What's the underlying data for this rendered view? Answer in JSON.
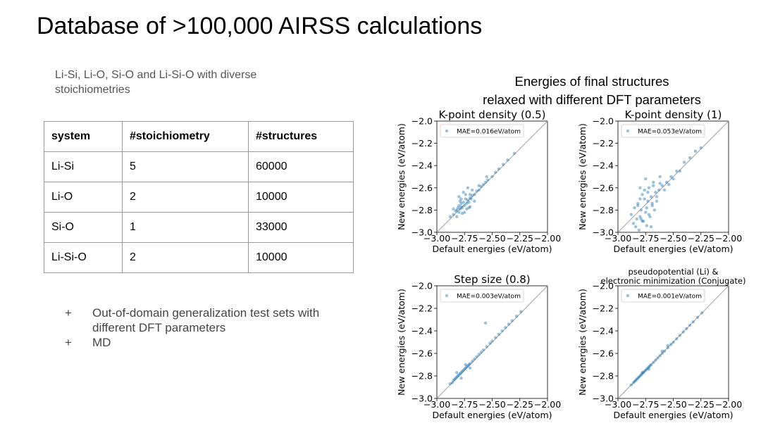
{
  "slide": {
    "title": "Database of >100,000 AIRSS calculations",
    "subtitle": "Li-Si, Li-O, Si-O and Li-Si-O with diverse stoichiometries",
    "plots_heading_line1": "Energies of final structures",
    "plots_heading_line2": "relaxed with different DFT parameters"
  },
  "table": {
    "headers": [
      "system",
      "#stoichiometry",
      "#structures"
    ],
    "rows": [
      [
        "Li-Si",
        "5",
        "60000"
      ],
      [
        "Li-O",
        "2",
        "10000"
      ],
      [
        "Si-O",
        "1",
        "33000"
      ],
      [
        "Li-Si-O",
        "2",
        "10000"
      ]
    ]
  },
  "bullets": [
    {
      "mark": "+",
      "text": "Out-of-domain generalization test sets with different DFT parameters"
    },
    {
      "mark": "+",
      "text": "MD"
    }
  ],
  "colors": {
    "points": "#1f77b4",
    "diagonal": "#a0a0a0"
  },
  "chart_data": [
    {
      "type": "scatter",
      "title": "K-point density (0.5)",
      "xlabel": "Default energies (eV/atom)",
      "ylabel": "New energies (eV/atom)",
      "xlim": [
        -3.0,
        -2.0
      ],
      "ylim": [
        -3.0,
        -2.0
      ],
      "xticks": [
        "−3.00",
        "−2.75",
        "−2.50",
        "−2.25",
        "−2.00"
      ],
      "yticks": [
        "−3.0",
        "−2.8",
        "−2.6",
        "−2.4",
        "−2.2",
        "−2.0"
      ],
      "legend": "MAE=0.016eV/atom",
      "legend_position": "top-left",
      "series": [
        {
          "x": [
            -2.88,
            -2.85,
            -2.83,
            -2.82,
            -2.81,
            -2.8,
            -2.8,
            -2.79,
            -2.78,
            -2.78,
            -2.77,
            -2.76,
            -2.75,
            -2.74,
            -2.73,
            -2.72,
            -2.71,
            -2.7,
            -2.69,
            -2.68,
            -2.66,
            -2.64,
            -2.62,
            -2.6,
            -2.58,
            -2.56,
            -2.54,
            -2.5,
            -2.47,
            -2.44,
            -2.4,
            -2.36,
            -2.3,
            -2.85,
            -2.82,
            -2.79,
            -2.77,
            -2.74,
            -2.71,
            -2.68,
            -2.66,
            -2.8,
            -2.76,
            -2.72,
            -2.7,
            -2.75,
            -2.78,
            -2.73,
            -2.7,
            -2.62,
            -2.55
          ],
          "y": [
            -2.86,
            -2.84,
            -2.81,
            -2.8,
            -2.78,
            -2.82,
            -2.76,
            -2.79,
            -2.77,
            -2.74,
            -2.78,
            -2.73,
            -2.76,
            -2.7,
            -2.74,
            -2.71,
            -2.73,
            -2.69,
            -2.7,
            -2.67,
            -2.66,
            -2.63,
            -2.62,
            -2.59,
            -2.57,
            -2.55,
            -2.53,
            -2.5,
            -2.46,
            -2.43,
            -2.39,
            -2.35,
            -2.29,
            -2.79,
            -2.86,
            -2.72,
            -2.83,
            -2.66,
            -2.78,
            -2.62,
            -2.72,
            -2.68,
            -2.64,
            -2.6,
            -2.77,
            -2.82,
            -2.7,
            -2.79,
            -2.66,
            -2.58,
            -2.5
          ]
        }
      ]
    },
    {
      "type": "scatter",
      "title": "K-point density (1)",
      "xlabel": "Default energies (eV/atom)",
      "ylabel": "New energies (eV/atom)",
      "xlim": [
        -3.0,
        -2.0
      ],
      "ylim": [
        -3.0,
        -2.0
      ],
      "xticks": [
        "−3.00",
        "−2.75",
        "−2.50",
        "−2.25",
        "−2.00"
      ],
      "yticks": [
        "−3.0",
        "−2.8",
        "−2.6",
        "−2.4",
        "−2.2",
        "−2.0"
      ],
      "legend": "MAE=0.053eV/atom",
      "legend_position": "top-left",
      "series": [
        {
          "x": [
            -2.88,
            -2.86,
            -2.85,
            -2.84,
            -2.83,
            -2.82,
            -2.81,
            -2.8,
            -2.8,
            -2.79,
            -2.78,
            -2.77,
            -2.76,
            -2.75,
            -2.74,
            -2.73,
            -2.72,
            -2.71,
            -2.7,
            -2.69,
            -2.68,
            -2.67,
            -2.66,
            -2.65,
            -2.63,
            -2.62,
            -2.6,
            -2.58,
            -2.56,
            -2.54,
            -2.52,
            -2.5,
            -2.47,
            -2.44,
            -2.4,
            -2.35,
            -2.3,
            -2.25,
            -2.8,
            -2.78,
            -2.75,
            -2.72,
            -2.7,
            -2.68,
            -2.76,
            -2.74,
            -2.65,
            -2.62,
            -2.82,
            -2.79,
            -2.73,
            -2.69
          ],
          "y": [
            -2.84,
            -2.92,
            -2.78,
            -2.95,
            -2.88,
            -2.74,
            -2.98,
            -2.7,
            -2.86,
            -2.8,
            -2.66,
            -2.9,
            -2.62,
            -2.82,
            -2.94,
            -2.72,
            -2.6,
            -2.86,
            -2.68,
            -2.76,
            -2.55,
            -2.8,
            -2.64,
            -2.72,
            -2.62,
            -2.5,
            -2.58,
            -2.62,
            -2.55,
            -2.57,
            -2.5,
            -2.52,
            -2.45,
            -2.45,
            -2.37,
            -2.33,
            -2.27,
            -2.24,
            -2.6,
            -2.9,
            -2.52,
            -2.84,
            -2.95,
            -2.58,
            -2.7,
            -2.78,
            -2.68,
            -2.56,
            -2.76,
            -2.88,
            -2.64,
            -2.74
          ]
        }
      ]
    },
    {
      "type": "scatter",
      "title": "Step size (0.8)",
      "xlabel": "Default energies (eV/atom)",
      "ylabel": "New energies (eV/atom)",
      "xlim": [
        -3.0,
        -2.0
      ],
      "ylim": [
        -3.0,
        -2.0
      ],
      "xticks": [
        "−3.00",
        "−2.75",
        "−2.50",
        "−2.25",
        "−2.00"
      ],
      "yticks": [
        "−3.0",
        "−2.8",
        "−2.6",
        "−2.4",
        "−2.2",
        "−2.0"
      ],
      "legend": "MAE=0.003eV/atom",
      "legend_position": "top-left",
      "series": [
        {
          "x": [
            -2.88,
            -2.86,
            -2.85,
            -2.84,
            -2.83,
            -2.82,
            -2.81,
            -2.8,
            -2.79,
            -2.78,
            -2.77,
            -2.76,
            -2.75,
            -2.74,
            -2.73,
            -2.72,
            -2.71,
            -2.7,
            -2.68,
            -2.66,
            -2.64,
            -2.62,
            -2.6,
            -2.58,
            -2.55,
            -2.52,
            -2.5,
            -2.47,
            -2.44,
            -2.41,
            -2.38,
            -2.35,
            -2.32,
            -2.28,
            -2.24,
            -2.82,
            -2.78,
            -2.74,
            -2.7,
            -2.56
          ],
          "y": [
            -2.87,
            -2.86,
            -2.84,
            -2.83,
            -2.82,
            -2.81,
            -2.8,
            -2.79,
            -2.78,
            -2.77,
            -2.76,
            -2.75,
            -2.74,
            -2.73,
            -2.72,
            -2.71,
            -2.7,
            -2.69,
            -2.67,
            -2.65,
            -2.63,
            -2.61,
            -2.59,
            -2.57,
            -2.54,
            -2.51,
            -2.49,
            -2.46,
            -2.43,
            -2.4,
            -2.37,
            -2.34,
            -2.31,
            -2.27,
            -2.23,
            -2.77,
            -2.82,
            -2.7,
            -2.73,
            -2.33
          ]
        }
      ]
    },
    {
      "type": "scatter",
      "title": "pseudopotential (Li) & electronic minimization (Conjugate)",
      "xlabel": "Default energies (eV/atom)",
      "ylabel": "New energies (eV/atom)",
      "xlim": [
        -3.0,
        -2.0
      ],
      "ylim": [
        -3.0,
        -2.0
      ],
      "xticks": [
        "−3.00",
        "−2.75",
        "−2.50",
        "−2.25",
        "−2.00"
      ],
      "yticks": [
        "−3.0",
        "−2.8",
        "−2.6",
        "−2.4",
        "−2.2",
        "−2.0"
      ],
      "legend": "MAE=0.001eV/atom",
      "legend_position": "top-left",
      "series": [
        {
          "x": [
            -2.88,
            -2.86,
            -2.85,
            -2.84,
            -2.83,
            -2.82,
            -2.81,
            -2.8,
            -2.79,
            -2.78,
            -2.77,
            -2.76,
            -2.75,
            -2.74,
            -2.73,
            -2.72,
            -2.71,
            -2.7,
            -2.68,
            -2.66,
            -2.64,
            -2.62,
            -2.6,
            -2.58,
            -2.55,
            -2.52,
            -2.5,
            -2.47,
            -2.44,
            -2.41,
            -2.38,
            -2.35,
            -2.32,
            -2.28,
            -2.24,
            -2.78,
            -2.72,
            -2.6,
            -2.55
          ],
          "y": [
            -2.88,
            -2.86,
            -2.85,
            -2.84,
            -2.83,
            -2.82,
            -2.81,
            -2.8,
            -2.79,
            -2.78,
            -2.77,
            -2.76,
            -2.75,
            -2.74,
            -2.73,
            -2.72,
            -2.71,
            -2.7,
            -2.68,
            -2.66,
            -2.64,
            -2.62,
            -2.6,
            -2.58,
            -2.55,
            -2.52,
            -2.5,
            -2.47,
            -2.44,
            -2.41,
            -2.38,
            -2.35,
            -2.32,
            -2.28,
            -2.24,
            -2.77,
            -2.74,
            -2.58,
            -2.53
          ]
        }
      ]
    }
  ]
}
